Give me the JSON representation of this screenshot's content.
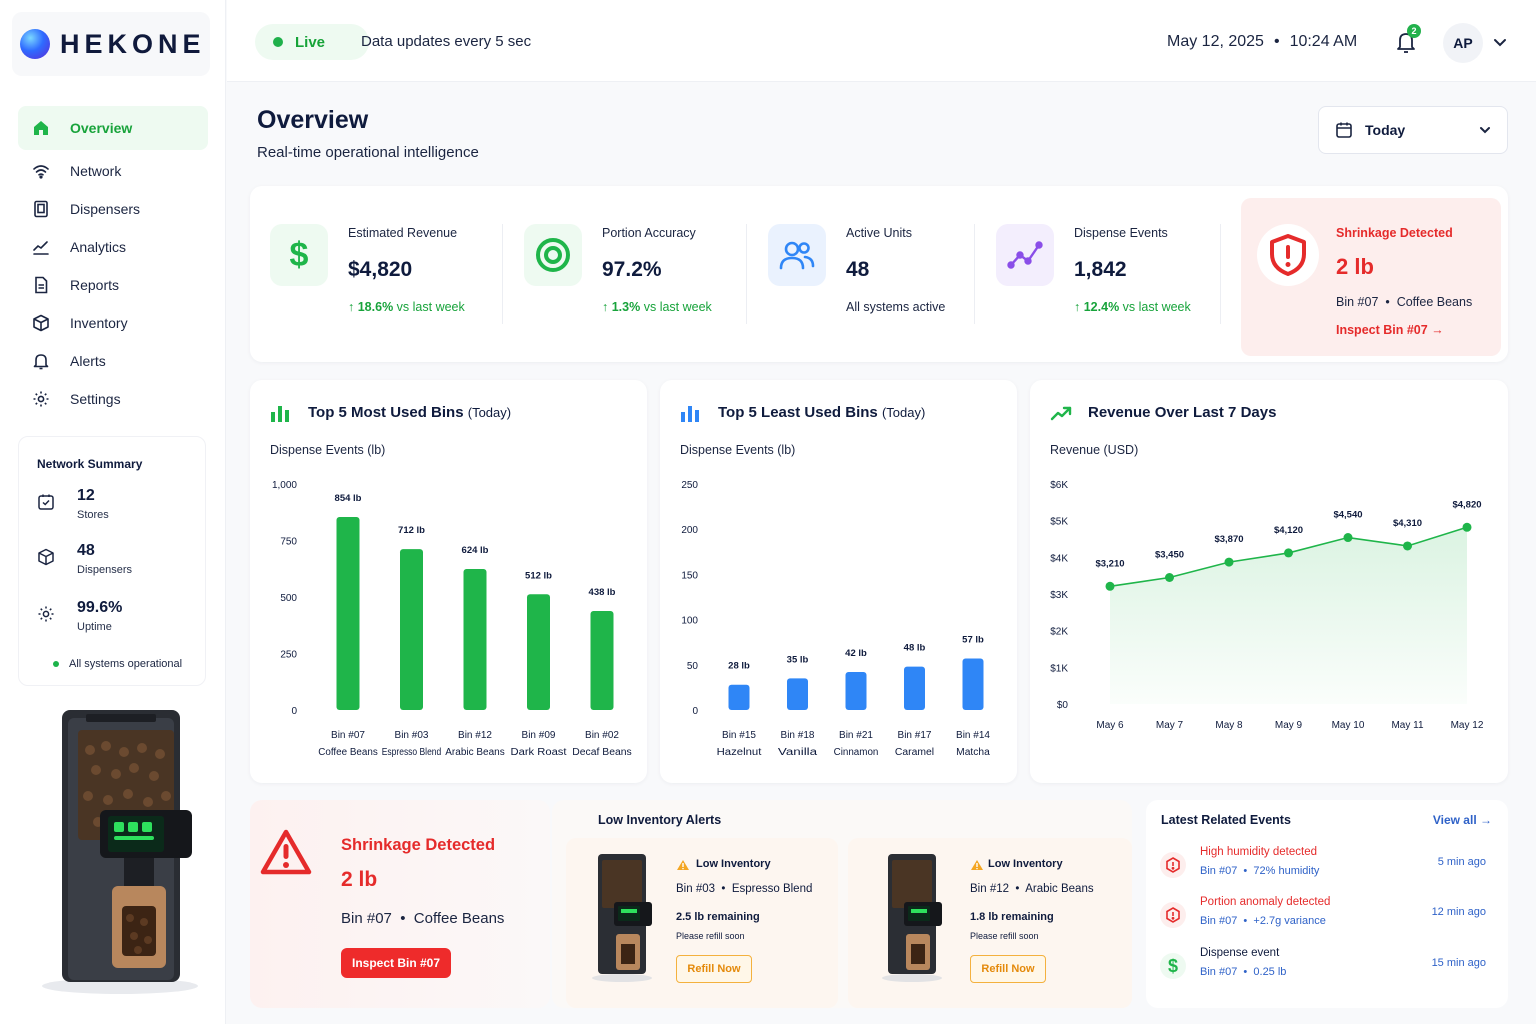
{
  "brand": {
    "name": "HEKONE"
  },
  "sidebar": {
    "items": [
      {
        "label": "Overview",
        "icon": "home-icon",
        "active": true
      },
      {
        "label": "Network",
        "icon": "wifi-icon"
      },
      {
        "label": "Dispensers",
        "icon": "dispenser-icon"
      },
      {
        "label": "Analytics",
        "icon": "analytics-icon"
      },
      {
        "label": "Reports",
        "icon": "report-icon"
      },
      {
        "label": "Inventory",
        "icon": "box-icon"
      },
      {
        "label": "Alerts",
        "icon": "bell-icon"
      },
      {
        "label": "Settings",
        "icon": "gear-icon"
      }
    ],
    "network_summary": {
      "title": "Network Summary",
      "stores": {
        "value": "12",
        "label": "Stores"
      },
      "dispensers": {
        "value": "48",
        "label": "Dispensers"
      },
      "uptime": {
        "value": "99.6%",
        "label": "Uptime"
      },
      "status": "All systems operational"
    }
  },
  "topbar": {
    "live_label": "Live",
    "update_text": "Data updates every 5 sec",
    "date": "May 12, 2025",
    "separator": "•",
    "time": "10:24 AM",
    "notification_count": "2",
    "avatar_initials": "AP"
  },
  "page": {
    "title": "Overview",
    "subtitle": "Real-time operational intelligence",
    "date_range": "Today"
  },
  "kpis": [
    {
      "label": "Estimated Revenue",
      "value": "$4,820",
      "trend_value": "18.6%",
      "trend_text": "vs last week"
    },
    {
      "label": "Portion Accuracy",
      "value": "97.2%",
      "trend_value": "1.3%",
      "trend_text": "vs last week"
    },
    {
      "label": "Active Units",
      "value": "48",
      "note": "All systems active"
    },
    {
      "label": "Dispense Events",
      "value": "1,842",
      "trend_value": "12.4%",
      "trend_text": "vs last week"
    }
  ],
  "shrinkage_kpi": {
    "title": "Shrinkage Detected",
    "value": "2 lb",
    "bin": "Bin #07",
    "product": "Coffee Beans",
    "link": "Inspect Bin #07"
  },
  "charts": {
    "most_used": {
      "title": "Top 5 Most Used Bins",
      "qualifier": "(Today)",
      "subtitle": "Dispense Events (lb)"
    },
    "least_used": {
      "title": "Top 5 Least Used Bins",
      "qualifier": "(Today)",
      "subtitle": "Dispense Events (lb)"
    },
    "revenue": {
      "title": "Revenue Over Last 7 Days",
      "subtitle": "Revenue (USD)"
    }
  },
  "chart_data": [
    {
      "type": "bar",
      "title": "Top 5 Most Used Bins (Today)",
      "ylabel": "Dispense Events (lb)",
      "categories": [
        "Bin #07",
        "Bin #03",
        "Bin #12",
        "Bin #09",
        "Bin #02"
      ],
      "subcategories": [
        "Coffee Beans",
        "Espresso Blend",
        "Arabic Beans",
        "Dark Roast",
        "Decaf Beans"
      ],
      "values": [
        854,
        712,
        624,
        512,
        438
      ],
      "data_labels": [
        "854 lb",
        "712 lb",
        "624 lb",
        "512 lb",
        "438 lb"
      ],
      "yticks": [
        "1,000",
        "750",
        "500",
        "250",
        "0"
      ],
      "ytick_values": [
        1000,
        750,
        500,
        250,
        0
      ],
      "ylim": [
        0,
        1000
      ],
      "color": "#1fb54a"
    },
    {
      "type": "bar",
      "title": "Top 5 Least Used Bins (Today)",
      "ylabel": "Dispense Events (lb)",
      "categories": [
        "Bin #15",
        "Bin #18",
        "Bin #21",
        "Bin #17",
        "Bin #14"
      ],
      "subcategories": [
        "Hazelnut",
        "Vanilla",
        "Cinnamon",
        "Caramel",
        "Matcha"
      ],
      "values": [
        28,
        35,
        42,
        48,
        57
      ],
      "data_labels": [
        "28 lb",
        "35 lb",
        "42 lb",
        "48 lb",
        "57 lb"
      ],
      "yticks": [
        "250",
        "200",
        "150",
        "100",
        "50",
        "0"
      ],
      "ytick_values": [
        250,
        200,
        150,
        100,
        50,
        0
      ],
      "ylim": [
        0,
        250
      ],
      "color": "#2f86f6"
    },
    {
      "type": "area",
      "title": "Revenue Over Last 7 Days",
      "ylabel": "Revenue (USD)",
      "x": [
        "May 6",
        "May 7",
        "May 8",
        "May 9",
        "May 10",
        "May 11",
        "May 12"
      ],
      "values": [
        3210,
        3450,
        3870,
        4120,
        4540,
        4310,
        4820
      ],
      "data_labels": [
        "$3,210",
        "$3,450",
        "$3,870",
        "$4,120",
        "$4,540",
        "$4,310",
        "$4,820"
      ],
      "yticks": [
        "$6K",
        "$5K",
        "$4K",
        "$3K",
        "$2K",
        "$1K",
        "$0"
      ],
      "ytick_values": [
        6000,
        5000,
        4000,
        3000,
        2000,
        1000,
        0
      ],
      "ylim": [
        0,
        6000
      ],
      "color": "#1fb54a"
    }
  ],
  "shrinkage_alert": {
    "title": "Shrinkage Detected",
    "value": "2 lb",
    "bin": "Bin #07",
    "product": "Coffee Beans",
    "button": "Inspect Bin #07"
  },
  "low_inventory": {
    "title": "Low Inventory Alerts",
    "items": [
      {
        "tag": "Low Inventory",
        "bin": "Bin #03",
        "product": "Espresso Blend",
        "remaining": "2.5 lb remaining",
        "note": "Please refill soon",
        "button": "Refill Now"
      },
      {
        "tag": "Low Inventory",
        "bin": "Bin #12",
        "product": "Arabic Beans",
        "remaining": "1.8 lb remaining",
        "note": "Please refill soon",
        "button": "Refill Now"
      }
    ]
  },
  "events": {
    "title": "Latest Related Events",
    "view_all": "View all",
    "items": [
      {
        "title": "High humidity detected",
        "bin": "Bin #07",
        "detail": "72% humidity",
        "time": "5 min ago"
      },
      {
        "title": "Portion anomaly detected",
        "bin": "Bin #07",
        "detail": "+2.7g variance",
        "time": "12 min ago"
      },
      {
        "title": "Dispense event",
        "bin": "Bin #07",
        "detail": "0.25 lb",
        "time": "15 min ago"
      }
    ]
  },
  "colors": {
    "green": "#1fb54a",
    "blue": "#2f86f6",
    "red": "#ee2b2b",
    "orange": "#f4a623",
    "navy": "#0f1b3d"
  }
}
